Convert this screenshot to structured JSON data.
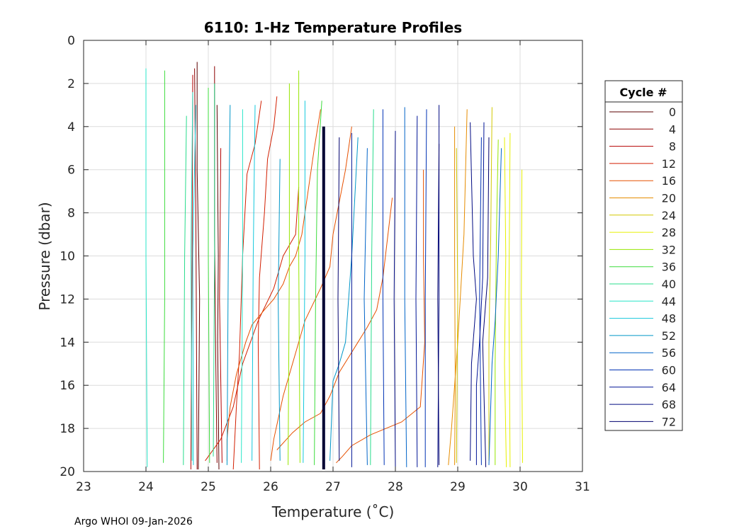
{
  "chart_data": {
    "type": "line",
    "title": "6110: 1-Hz Temperature Profiles",
    "xlabel": "Temperature (˚C)",
    "ylabel": "Pressure (dbar)",
    "xlim": [
      23,
      31
    ],
    "ylim": [
      20,
      0
    ],
    "y_reversed": true,
    "grid": true,
    "xticks": [
      23,
      24,
      25,
      26,
      27,
      28,
      29,
      30,
      31
    ],
    "yticks": [
      0,
      2,
      4,
      6,
      8,
      10,
      12,
      14,
      16,
      18,
      20
    ],
    "legend": {
      "title": "Cycle #",
      "placement": "right-outside",
      "entries": [
        {
          "label": "0",
          "color": "#5a0000"
        },
        {
          "label": "4",
          "color": "#8c0000"
        },
        {
          "label": "8",
          "color": "#b40000"
        },
        {
          "label": "12",
          "color": "#d21e00"
        },
        {
          "label": "16",
          "color": "#e65000"
        },
        {
          "label": "20",
          "color": "#e68c00"
        },
        {
          "label": "24",
          "color": "#d2c800"
        },
        {
          "label": "28",
          "color": "#e6f000"
        },
        {
          "label": "32",
          "color": "#96e600"
        },
        {
          "label": "36",
          "color": "#3cdc3c"
        },
        {
          "label": "40",
          "color": "#28dc8c"
        },
        {
          "label": "44",
          "color": "#28e6c8"
        },
        {
          "label": "48",
          "color": "#14c8dc"
        },
        {
          "label": "52",
          "color": "#0096c8"
        },
        {
          "label": "56",
          "color": "#0064c8"
        },
        {
          "label": "60",
          "color": "#0032b4"
        },
        {
          "label": "64",
          "color": "#001496"
        },
        {
          "label": "68",
          "color": "#000a82"
        },
        {
          "label": "72",
          "color": "#00006e"
        }
      ]
    },
    "highlight_profile": {
      "color": "#000033",
      "points": [
        [
          26.85,
          4
        ],
        [
          26.85,
          19.9
        ]
      ]
    },
    "series": [
      {
        "color": "#5a0000",
        "points": [
          [
            24.82,
            1.0
          ],
          [
            24.82,
            6.0
          ],
          [
            24.86,
            12.0
          ],
          [
            24.84,
            19.9
          ]
        ]
      },
      {
        "color": "#5a0000",
        "points": [
          [
            25.14,
            3.0
          ],
          [
            25.16,
            10.0
          ],
          [
            25.15,
            14.0
          ],
          [
            25.17,
            19.9
          ]
        ]
      },
      {
        "color": "#8c0000",
        "points": [
          [
            24.78,
            1.3
          ],
          [
            24.8,
            8.0
          ],
          [
            24.82,
            19.9
          ]
        ]
      },
      {
        "color": "#8c0000",
        "points": [
          [
            25.1,
            1.2
          ],
          [
            25.1,
            9.0
          ],
          [
            25.12,
            15.0
          ],
          [
            25.14,
            19.6
          ]
        ]
      },
      {
        "color": "#b40000",
        "points": [
          [
            24.75,
            1.6
          ],
          [
            24.74,
            10.0
          ],
          [
            24.72,
            19.9
          ]
        ]
      },
      {
        "color": "#b40000",
        "points": [
          [
            25.2,
            5.0
          ],
          [
            25.18,
            12.0
          ],
          [
            25.22,
            19.6
          ]
        ]
      },
      {
        "color": "#d21e00",
        "points": [
          [
            25.85,
            2.8
          ],
          [
            25.75,
            4.8
          ],
          [
            25.62,
            6.2
          ],
          [
            25.55,
            10.0
          ],
          [
            25.5,
            14.5
          ],
          [
            25.45,
            17.0
          ],
          [
            25.4,
            19.9
          ]
        ]
      },
      {
        "color": "#d21e00",
        "points": [
          [
            26.1,
            2.6
          ],
          [
            26.05,
            4.0
          ],
          [
            25.95,
            5.5
          ],
          [
            25.9,
            8.0
          ],
          [
            25.82,
            11.0
          ],
          [
            25.8,
            14.0
          ],
          [
            25.82,
            19.9
          ]
        ]
      },
      {
        "color": "#d21e00",
        "points": [
          [
            26.45,
            6.8
          ],
          [
            26.4,
            9.0
          ],
          [
            26.2,
            10.0
          ],
          [
            26.05,
            11.5
          ],
          [
            25.8,
            13.0
          ],
          [
            25.55,
            15.0
          ],
          [
            25.4,
            17.0
          ],
          [
            25.2,
            18.5
          ],
          [
            24.95,
            19.5
          ]
        ]
      },
      {
        "color": "#e65000",
        "points": [
          [
            27.3,
            4.0
          ],
          [
            27.2,
            6.0
          ],
          [
            27.1,
            7.5
          ],
          [
            27.0,
            9.0
          ],
          [
            26.95,
            10.5
          ],
          [
            26.8,
            11.5
          ],
          [
            26.55,
            13.0
          ],
          [
            26.4,
            14.5
          ],
          [
            26.2,
            16.5
          ],
          [
            26.05,
            18.5
          ],
          [
            26.0,
            19.5
          ]
        ]
      },
      {
        "color": "#e65000",
        "points": [
          [
            26.8,
            3.2
          ],
          [
            26.7,
            5.0
          ],
          [
            26.6,
            7.0
          ],
          [
            26.5,
            9.0
          ],
          [
            26.4,
            10.0
          ],
          [
            26.3,
            10.5
          ],
          [
            26.2,
            11.3
          ],
          [
            26.05,
            12.0
          ],
          [
            25.9,
            12.5
          ],
          [
            25.7,
            13.2
          ],
          [
            25.6,
            14.0
          ],
          [
            25.45,
            15.5
          ],
          [
            25.35,
            17.0
          ],
          [
            25.3,
            18.5
          ],
          [
            25.3,
            19.5
          ]
        ]
      },
      {
        "color": "#e65000",
        "points": [
          [
            28.45,
            6.0
          ],
          [
            28.45,
            10.0
          ],
          [
            28.47,
            14.0
          ],
          [
            28.4,
            17.0
          ],
          [
            28.1,
            17.7
          ],
          [
            27.6,
            18.3
          ],
          [
            27.3,
            18.8
          ],
          [
            27.15,
            19.3
          ],
          [
            27.05,
            19.6
          ]
        ]
      },
      {
        "color": "#e65000",
        "points": [
          [
            27.95,
            7.3
          ],
          [
            27.8,
            11.0
          ],
          [
            27.7,
            12.5
          ],
          [
            27.55,
            13.3
          ],
          [
            27.4,
            14.0
          ],
          [
            27.25,
            14.7
          ],
          [
            27.1,
            15.4
          ],
          [
            26.95,
            16.5
          ],
          [
            26.8,
            17.3
          ],
          [
            26.55,
            17.7
          ],
          [
            26.35,
            18.2
          ],
          [
            26.1,
            19.0
          ]
        ]
      },
      {
        "color": "#e68c00",
        "points": [
          [
            28.95,
            4.0
          ],
          [
            28.95,
            10.0
          ],
          [
            28.96,
            16.0
          ],
          [
            28.95,
            19.7
          ]
        ]
      },
      {
        "color": "#e68c00",
        "points": [
          [
            29.15,
            3.2
          ],
          [
            29.1,
            9.0
          ],
          [
            29.0,
            14.0
          ],
          [
            28.9,
            18.0
          ],
          [
            28.85,
            19.7
          ]
        ]
      },
      {
        "color": "#d2c800",
        "points": [
          [
            29.55,
            3.1
          ],
          [
            29.53,
            9.0
          ],
          [
            29.5,
            14.0
          ],
          [
            29.5,
            19.5
          ]
        ]
      },
      {
        "color": "#d2c800",
        "points": [
          [
            28.98,
            5.0
          ],
          [
            29.0,
            12.0
          ],
          [
            28.98,
            19.6
          ]
        ]
      },
      {
        "color": "#e6f000",
        "points": [
          [
            29.75,
            4.5
          ],
          [
            29.77,
            10.0
          ],
          [
            29.75,
            15.0
          ],
          [
            29.78,
            19.8
          ]
        ]
      },
      {
        "color": "#e6f000",
        "points": [
          [
            29.84,
            4.3
          ],
          [
            29.82,
            12.0
          ],
          [
            29.84,
            19.8
          ]
        ]
      },
      {
        "color": "#e6f000",
        "points": [
          [
            30.03,
            6.0
          ],
          [
            30.02,
            12.0
          ],
          [
            30.04,
            19.6
          ]
        ]
      },
      {
        "color": "#96e600",
        "points": [
          [
            26.3,
            2.0
          ],
          [
            26.3,
            10.0
          ],
          [
            26.28,
            19.7
          ]
        ]
      },
      {
        "color": "#96e600",
        "points": [
          [
            26.45,
            1.4
          ],
          [
            26.45,
            10.0
          ],
          [
            26.47,
            19.6
          ]
        ]
      },
      {
        "color": "#96e600",
        "points": [
          [
            29.65,
            4.6
          ],
          [
            29.62,
            9.0
          ],
          [
            29.6,
            15.0
          ],
          [
            29.6,
            19.7
          ]
        ]
      },
      {
        "color": "#3cdc3c",
        "points": [
          [
            24.3,
            1.4
          ],
          [
            24.3,
            12.0
          ],
          [
            24.28,
            19.6
          ]
        ]
      },
      {
        "color": "#3cdc3c",
        "points": [
          [
            26.82,
            2.8
          ],
          [
            26.75,
            6.0
          ],
          [
            26.72,
            12.0
          ],
          [
            26.7,
            19.7
          ]
        ]
      },
      {
        "color": "#3cdc3c",
        "points": [
          [
            25.0,
            2.2
          ],
          [
            25.0,
            10.0
          ],
          [
            25.02,
            19.6
          ]
        ]
      },
      {
        "color": "#28dc8c",
        "points": [
          [
            24.65,
            3.5
          ],
          [
            24.62,
            10.0
          ],
          [
            24.6,
            19.7
          ]
        ]
      },
      {
        "color": "#28dc8c",
        "points": [
          [
            25.1,
            2.0
          ],
          [
            25.1,
            10.0
          ],
          [
            25.08,
            19.3
          ]
        ]
      },
      {
        "color": "#28dc8c",
        "points": [
          [
            27.65,
            3.2
          ],
          [
            27.62,
            10.0
          ],
          [
            27.6,
            19.7
          ]
        ]
      },
      {
        "color": "#28e6c8",
        "points": [
          [
            24.0,
            1.3
          ],
          [
            24.0,
            10.0
          ],
          [
            24.02,
            19.8
          ]
        ]
      },
      {
        "color": "#28e6c8",
        "points": [
          [
            24.75,
            2.4
          ],
          [
            24.72,
            10.0
          ],
          [
            24.74,
            19.5
          ]
        ]
      },
      {
        "color": "#28e6c8",
        "points": [
          [
            25.55,
            3.2
          ],
          [
            25.55,
            10.0
          ],
          [
            25.53,
            19.6
          ]
        ]
      },
      {
        "color": "#14c8dc",
        "points": [
          [
            24.8,
            3.0
          ],
          [
            24.75,
            10.0
          ],
          [
            24.76,
            19.7
          ]
        ]
      },
      {
        "color": "#14c8dc",
        "points": [
          [
            25.75,
            3.0
          ],
          [
            25.72,
            10.0
          ],
          [
            25.7,
            19.5
          ]
        ]
      },
      {
        "color": "#14c8dc",
        "points": [
          [
            26.55,
            2.8
          ],
          [
            26.55,
            10.0
          ],
          [
            26.52,
            19.6
          ]
        ]
      },
      {
        "color": "#0096c8",
        "points": [
          [
            25.35,
            3.0
          ],
          [
            25.32,
            10.0
          ],
          [
            25.3,
            19.7
          ]
        ]
      },
      {
        "color": "#0096c8",
        "points": [
          [
            27.4,
            4.5
          ],
          [
            27.3,
            10.0
          ],
          [
            27.2,
            14.0
          ],
          [
            27.1,
            15.0
          ],
          [
            27.0,
            15.8
          ],
          [
            26.95,
            19.5
          ]
        ]
      },
      {
        "color": "#0096c8",
        "points": [
          [
            26.15,
            5.5
          ],
          [
            26.12,
            12.0
          ],
          [
            26.15,
            19.5
          ]
        ]
      },
      {
        "color": "#0064c8",
        "points": [
          [
            27.55,
            5.0
          ],
          [
            27.5,
            12.0
          ],
          [
            27.55,
            19.7
          ]
        ]
      },
      {
        "color": "#0064c8",
        "points": [
          [
            28.15,
            3.1
          ],
          [
            28.15,
            12.0
          ],
          [
            28.18,
            19.8
          ]
        ]
      },
      {
        "color": "#0064c8",
        "points": [
          [
            29.7,
            5.0
          ],
          [
            29.65,
            10.0
          ],
          [
            29.6,
            13.0
          ],
          [
            29.55,
            15.0
          ],
          [
            29.5,
            19.7
          ]
        ]
      },
      {
        "color": "#0032b4",
        "points": [
          [
            27.8,
            3.2
          ],
          [
            27.8,
            12.0
          ],
          [
            27.82,
            19.7
          ]
        ]
      },
      {
        "color": "#0032b4",
        "points": [
          [
            28.5,
            3.2
          ],
          [
            28.48,
            12.0
          ],
          [
            28.48,
            19.8
          ]
        ]
      },
      {
        "color": "#0032b4",
        "points": [
          [
            29.38,
            4.5
          ],
          [
            29.35,
            12.0
          ],
          [
            29.38,
            19.7
          ]
        ]
      },
      {
        "color": "#001496",
        "points": [
          [
            27.3,
            4.3
          ],
          [
            27.3,
            12.0
          ],
          [
            27.3,
            19.8
          ]
        ]
      },
      {
        "color": "#001496",
        "points": [
          [
            28.35,
            3.5
          ],
          [
            28.33,
            12.0
          ],
          [
            28.35,
            19.8
          ]
        ]
      },
      {
        "color": "#001496",
        "points": [
          [
            29.42,
            3.8
          ],
          [
            29.4,
            11.0
          ],
          [
            29.35,
            14.0
          ],
          [
            29.3,
            16.0
          ],
          [
            29.3,
            19.7
          ]
        ]
      },
      {
        "color": "#000a82",
        "points": [
          [
            28.0,
            4.2
          ],
          [
            27.98,
            12.0
          ],
          [
            28.0,
            19.8
          ]
        ]
      },
      {
        "color": "#000a82",
        "points": [
          [
            28.7,
            3.0
          ],
          [
            28.7,
            12.0
          ],
          [
            28.68,
            19.8
          ]
        ]
      },
      {
        "color": "#000a82",
        "points": [
          [
            29.2,
            3.8
          ],
          [
            29.25,
            10.0
          ],
          [
            29.3,
            12.0
          ],
          [
            29.22,
            15.0
          ],
          [
            29.2,
            19.5
          ]
        ]
      },
      {
        "color": "#00006e",
        "points": [
          [
            28.7,
            4.8
          ],
          [
            28.68,
            12.0
          ],
          [
            28.7,
            19.7
          ]
        ]
      },
      {
        "color": "#00006e",
        "points": [
          [
            29.5,
            4.5
          ],
          [
            29.48,
            11.0
          ],
          [
            29.4,
            14.0
          ],
          [
            29.45,
            19.8
          ]
        ]
      },
      {
        "color": "#00006e",
        "points": [
          [
            27.1,
            4.5
          ],
          [
            27.08,
            12.0
          ],
          [
            27.1,
            19.5
          ]
        ]
      }
    ]
  },
  "footer": "Argo WHOI 09-Jan-2026"
}
